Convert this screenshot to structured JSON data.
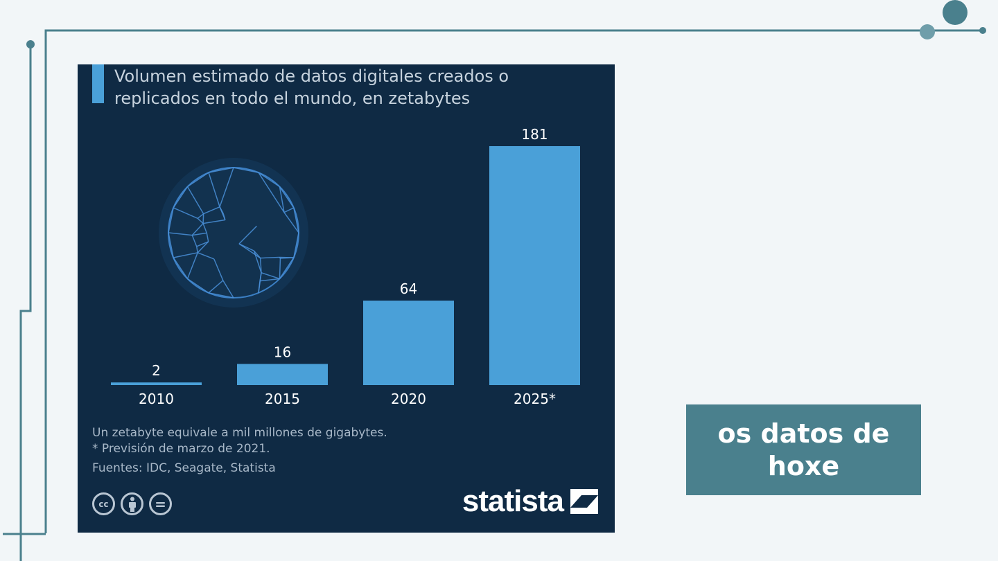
{
  "colors": {
    "page_background": "#f2f6f8",
    "decor_line": "#4a808d",
    "panel_background": "#0f2a44",
    "bar": "#4aa0d8",
    "callout_background": "#4a808d"
  },
  "chart_data": {
    "type": "bar",
    "title": "Volumen estimado de datos digitales creados o replicados en todo el mundo, en zetabytes",
    "categories": [
      "2010",
      "2015",
      "2020",
      "2025*"
    ],
    "values": [
      2,
      16,
      64,
      181
    ],
    "value_labels": [
      "2",
      "16",
      "64",
      "181"
    ],
    "xlabel": "",
    "ylabel": "",
    "ylim": [
      0,
      181
    ],
    "grid": false,
    "legend": "none"
  },
  "notes": {
    "definition": "Un zetabyte equivale a mil millones de gigabytes.",
    "forecast": "* Previsión de marzo de 2021.",
    "sources": "Fuentes: IDC, Seagate, Statista"
  },
  "license_icons": [
    "cc-icon",
    "attribution-icon",
    "no-derivatives-icon"
  ],
  "license_labels": [
    "cc",
    "",
    "="
  ],
  "brand": {
    "name": "statista",
    "icon": "statista-logo-icon"
  },
  "illustration": "globe-network-icon",
  "callout": {
    "text": "os datos de hoxe"
  }
}
